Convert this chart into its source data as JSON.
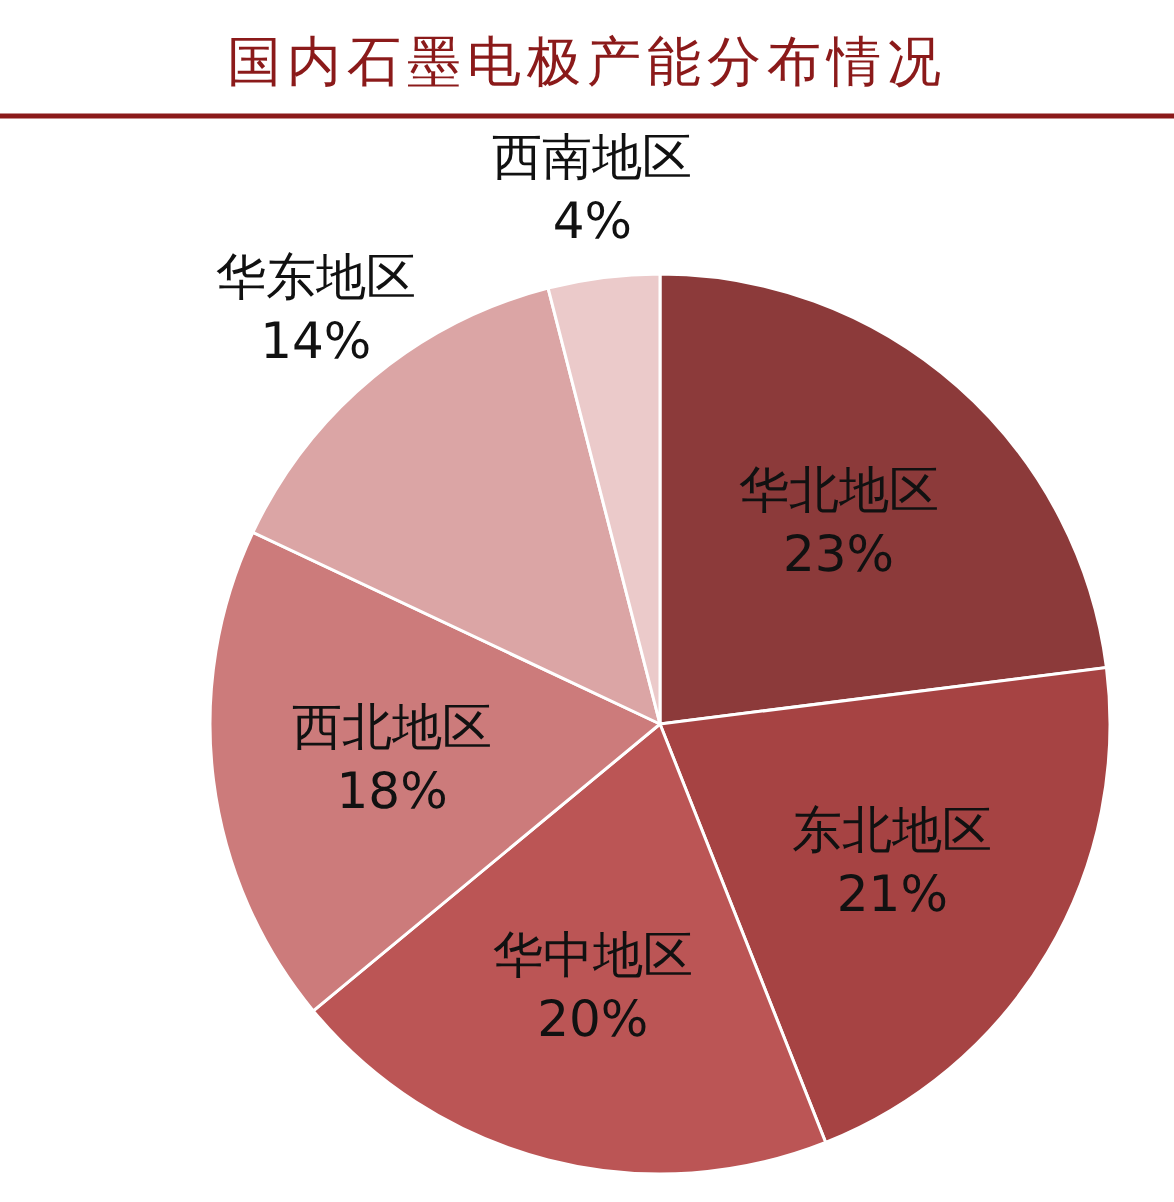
{
  "chart_data": {
    "type": "pie",
    "title": "国内石墨电极产能分布情况",
    "categories": [
      "华北地区",
      "东北地区",
      "华中地区",
      "西北地区",
      "华东地区",
      "西南地区"
    ],
    "values": [
      23,
      21,
      20,
      18,
      14,
      4
    ],
    "colors": [
      "#8c3a3a",
      "#a64343",
      "#bb5555",
      "#cc7b7b",
      "#dba5a5",
      "#ebcaca"
    ],
    "value_labels": [
      "23%",
      "21%",
      "20%",
      "18%",
      "14%",
      "4%"
    ]
  }
}
